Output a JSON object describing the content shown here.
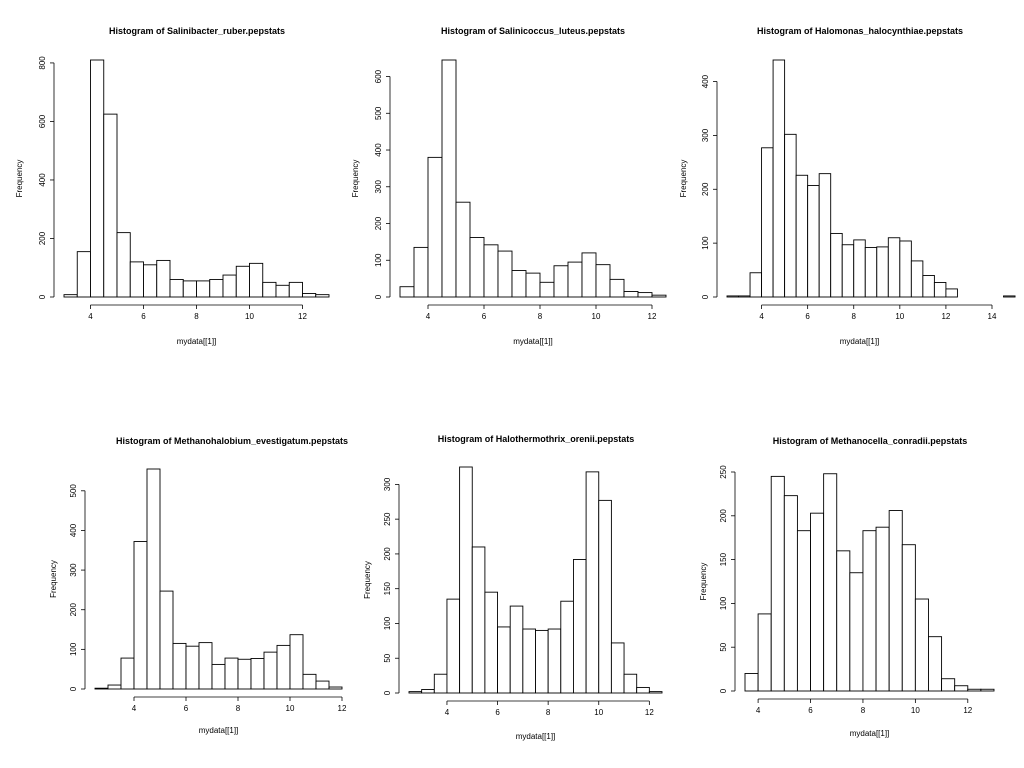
{
  "chart_data": [
    {
      "type": "bar",
      "title": "Histogram of  Salinibacter_ruber.pepstats",
      "xlabel": "mydata[[1]]",
      "ylabel": "Frequency",
      "bin_start": 3,
      "bin_width": 0.5,
      "values": [
        8,
        155,
        810,
        625,
        220,
        120,
        110,
        125,
        60,
        55,
        55,
        60,
        75,
        105,
        115,
        50,
        40,
        50,
        12,
        8
      ],
      "xlim": [
        3,
        13
      ],
      "ylim": [
        0,
        810
      ],
      "x_ticks": [
        4,
        6,
        8,
        10,
        12
      ],
      "y_ticks": [
        0,
        200,
        400,
        600,
        800
      ]
    },
    {
      "type": "bar",
      "title": "Histogram of  Salinicoccus_luteus.pepstats",
      "xlabel": "mydata[[1]]",
      "ylabel": "Frequency",
      "bin_start": 3,
      "bin_width": 0.5,
      "values": [
        28,
        135,
        380,
        645,
        258,
        162,
        142,
        125,
        72,
        65,
        40,
        85,
        95,
        120,
        88,
        48,
        15,
        12,
        5
      ],
      "xlim": [
        3,
        12.5
      ],
      "ylim": [
        0,
        645
      ],
      "x_ticks": [
        4,
        6,
        8,
        10,
        12
      ],
      "y_ticks": [
        0,
        100,
        200,
        300,
        400,
        500,
        600
      ]
    },
    {
      "type": "bar",
      "title": "Histogram of  Halomonas_halocynthiae.pepstats",
      "xlabel": "mydata[[1]]",
      "ylabel": "Frequency",
      "bin_start": 2.5,
      "bin_width": 0.5,
      "values": [
        2,
        2,
        45,
        277,
        440,
        302,
        226,
        207,
        229,
        118,
        97,
        106,
        92,
        93,
        110,
        104,
        67,
        40,
        27,
        15,
        0,
        0,
        0,
        0,
        2
      ],
      "xlim": [
        2.5,
        14
      ],
      "ylim": [
        0,
        440
      ],
      "x_ticks": [
        4,
        6,
        8,
        10,
        12,
        14
      ],
      "y_ticks": [
        0,
        100,
        200,
        300,
        400
      ]
    },
    {
      "type": "bar",
      "title": "Histogram of  Methanohalobium_evestigatum.pepstats",
      "xlabel": "mydata[[1]]",
      "ylabel": "Frequency",
      "bin_start": 2.5,
      "bin_width": 0.5,
      "values": [
        2,
        10,
        78,
        372,
        555,
        247,
        115,
        108,
        117,
        62,
        78,
        75,
        77,
        93,
        110,
        137,
        37,
        20,
        5
      ],
      "xlim": [
        2.5,
        12
      ],
      "ylim": [
        0,
        555
      ],
      "x_ticks": [
        4,
        6,
        8,
        10,
        12
      ],
      "y_ticks": [
        0,
        100,
        200,
        300,
        400,
        500
      ]
    },
    {
      "type": "bar",
      "title": "Histogram of  Halothermothrix_orenii.pepstats",
      "xlabel": "mydata[[1]]",
      "ylabel": "Frequency",
      "bin_start": 2.5,
      "bin_width": 0.5,
      "values": [
        2,
        5,
        27,
        135,
        325,
        210,
        145,
        95,
        125,
        92,
        90,
        92,
        132,
        192,
        318,
        277,
        72,
        27,
        8,
        2
      ],
      "xlim": [
        2.5,
        12.5
      ],
      "ylim": [
        0,
        325
      ],
      "x_ticks": [
        4,
        6,
        8,
        10,
        12
      ],
      "y_ticks": [
        0,
        50,
        100,
        150,
        200,
        250,
        300
      ]
    },
    {
      "type": "bar",
      "title": "Histogram of  Methanocella_conradii.pepstats",
      "xlabel": "mydata[[1]]",
      "ylabel": "Frequency",
      "bin_start": 3.5,
      "bin_width": 0.5,
      "values": [
        20,
        88,
        245,
        223,
        183,
        203,
        248,
        160,
        135,
        183,
        187,
        206,
        167,
        105,
        62,
        14,
        6,
        2,
        2
      ],
      "xlim": [
        3.5,
        13
      ],
      "ylim": [
        0,
        250
      ],
      "x_ticks": [
        4,
        6,
        8,
        10,
        12
      ],
      "y_ticks": [
        0,
        50,
        100,
        150,
        200,
        250
      ]
    }
  ]
}
